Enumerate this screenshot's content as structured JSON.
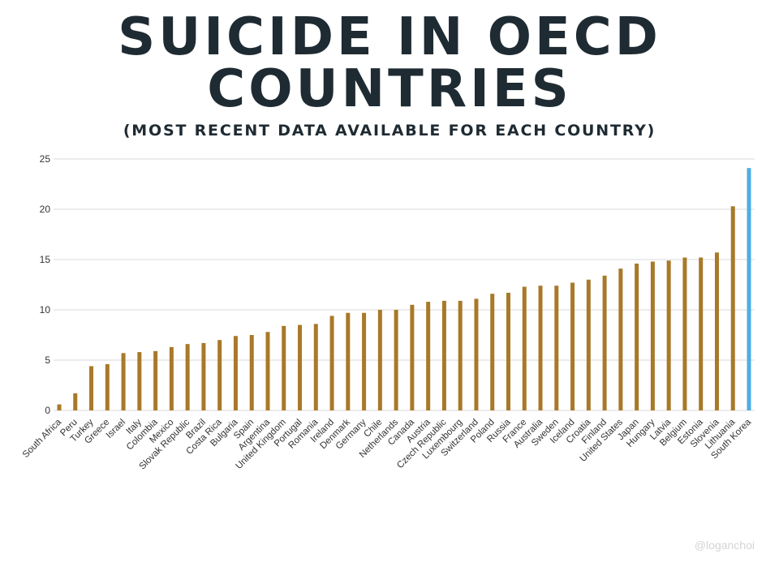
{
  "title_line1": "SUICIDE IN OECD",
  "title_line2": "COUNTRIES",
  "subtitle": "(MOST RECENT DATA AVAILABLE FOR EACH COUNTRY)",
  "credit": "@loganchoi",
  "colors": {
    "bar": "#a87928",
    "highlight": "#4daee3",
    "grid": "#d9d9d9",
    "title": "#1f2b33"
  },
  "chart_data": {
    "type": "bar",
    "title": "SUICIDE IN OECD COUNTRIES",
    "subtitle": "(MOST RECENT DATA AVAILABLE FOR EACH COUNTRY)",
    "xlabel": "",
    "ylabel": "",
    "ylim": [
      0,
      25
    ],
    "yticks": [
      0,
      5,
      10,
      15,
      20,
      25
    ],
    "grid": true,
    "legend": "none",
    "highlight": "South Korea",
    "categories": [
      "South Africa",
      "Peru",
      "Turkey",
      "Greece",
      "Israel",
      "Italy",
      "Colombia",
      "Mexico",
      "Slovak Republic",
      "Brazil",
      "Costa Rica",
      "Bulgaria",
      "Spain",
      "Argentina",
      "United Kingdom",
      "Portugal",
      "Romania",
      "Ireland",
      "Denmark",
      "Germany",
      "Chile",
      "Netherlands",
      "Canada",
      "Austria",
      "Czech Republic",
      "Luxembourg",
      "Switzerland",
      "Poland",
      "Russia",
      "France",
      "Australia",
      "Sweden",
      "Iceland",
      "Croatia",
      "Finland",
      "United States",
      "Japan",
      "Hungary",
      "Latvia",
      "Belgium",
      "Estonia",
      "Slovenia",
      "Lithuania",
      "South Korea"
    ],
    "values": [
      0.6,
      1.7,
      4.4,
      4.6,
      5.7,
      5.8,
      5.9,
      6.3,
      6.6,
      6.7,
      7.0,
      7.4,
      7.5,
      7.8,
      8.4,
      8.5,
      8.6,
      9.4,
      9.7,
      9.7,
      10.0,
      10.0,
      10.5,
      10.8,
      10.9,
      10.9,
      11.1,
      11.6,
      11.7,
      12.3,
      12.4,
      12.4,
      12.7,
      13.0,
      13.4,
      14.1,
      14.6,
      14.8,
      14.9,
      15.2,
      15.2,
      15.7,
      20.3,
      24.1
    ]
  }
}
